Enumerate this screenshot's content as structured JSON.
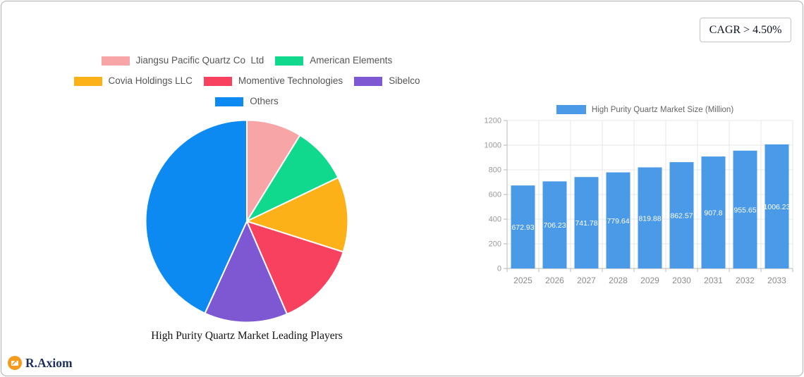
{
  "annotations": {
    "cagr": "CAGR > 4.50%"
  },
  "brand": {
    "name": "R.Axiom",
    "icon_color": "#f59b1e",
    "text_color": "#1e2f5e"
  },
  "colors": {
    "card_border": "#aeaeae",
    "grid": "#e7e7e7",
    "axis": "#b9b9b9",
    "tick_text": "#999999"
  },
  "chart_data": [
    {
      "type": "pie",
      "title": "High Purity Quartz Market Leading Players",
      "legend_position": "top",
      "direction": "clockwise",
      "start_angle_deg": 0,
      "units": "percent",
      "slices": [
        {
          "label": "Jiangsu Pacific Quartz Co  Ltd",
          "value": 8.8,
          "color": "#f8a5a8"
        },
        {
          "label": "American Elements",
          "value": 9.1,
          "color": "#10d98d"
        },
        {
          "label": "Covia Holdings LLC",
          "value": 12.0,
          "color": "#fbb117"
        },
        {
          "label": "Momentive Technologies",
          "value": 13.6,
          "color": "#f8405f"
        },
        {
          "label": "Sibelco",
          "value": 13.3,
          "color": "#7e57d2"
        },
        {
          "label": "Others",
          "value": 43.2,
          "color": "#0d8af2"
        }
      ]
    },
    {
      "type": "bar",
      "legend": "High Purity Quartz Market Size (Million)",
      "legend_position": "top",
      "categories": [
        "2025",
        "2026",
        "2027",
        "2028",
        "2029",
        "2030",
        "2031",
        "2032",
        "2033"
      ],
      "values": [
        672.93,
        706.23,
        741.78,
        779.64,
        819.88,
        862.57,
        907.8,
        955.65,
        1006.23
      ],
      "value_labels": [
        "672.93",
        "706.23",
        "741.78",
        "779.64",
        "819.88",
        "862.57",
        "907.8",
        "955.65",
        "1006.23"
      ],
      "bar_color": "#4a9ae8",
      "ylim": [
        0,
        1200
      ],
      "yticks": [
        0,
        200,
        400,
        600,
        800,
        1000,
        1200
      ],
      "grid": true
    }
  ]
}
